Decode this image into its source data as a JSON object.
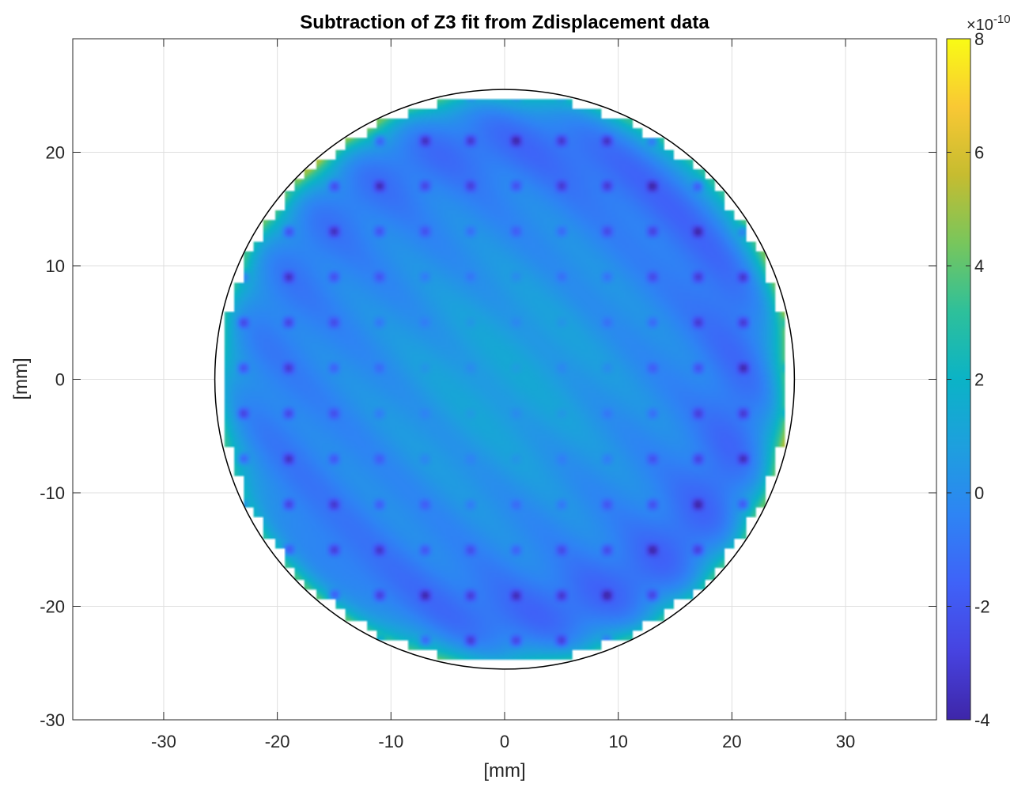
{
  "chart_data": {
    "type": "heatmap",
    "title": "Subtraction of Z3 fit from Zdisplacement data",
    "xlabel": "[mm]",
    "ylabel": "[mm]",
    "xlim": [
      -38,
      38
    ],
    "ylim": [
      -30,
      30
    ],
    "x_ticks": [
      -30,
      -20,
      -10,
      0,
      10,
      20,
      30
    ],
    "y_ticks": [
      -30,
      -20,
      -10,
      0,
      10,
      20
    ],
    "x_tick_labels": [
      "-30",
      "-20",
      "-10",
      "0",
      "10",
      "20",
      "30"
    ],
    "y_tick_labels": [
      "-30",
      "-20",
      "-10",
      "0",
      "10",
      "20"
    ],
    "grid": true,
    "colormap": "parula",
    "colorbar": {
      "range": [
        -4,
        8
      ],
      "ticks": [
        -4,
        -2,
        0,
        2,
        4,
        6,
        8
      ],
      "tick_labels": [
        "-4",
        "-2",
        "0",
        "2",
        "4",
        "6",
        "8"
      ],
      "exponent_label": "×10",
      "exponent_power": "-10"
    },
    "aperture_radius": 25.5,
    "field_summary": {
      "center_value": 1.0,
      "typical_interior_value": -0.5,
      "min_value": -3.8,
      "max_value": 7.0,
      "edge_high_region": "right (x ≈ 24) and upper-left / lower-left rim",
      "dark_spot_pitch": 4
    }
  }
}
